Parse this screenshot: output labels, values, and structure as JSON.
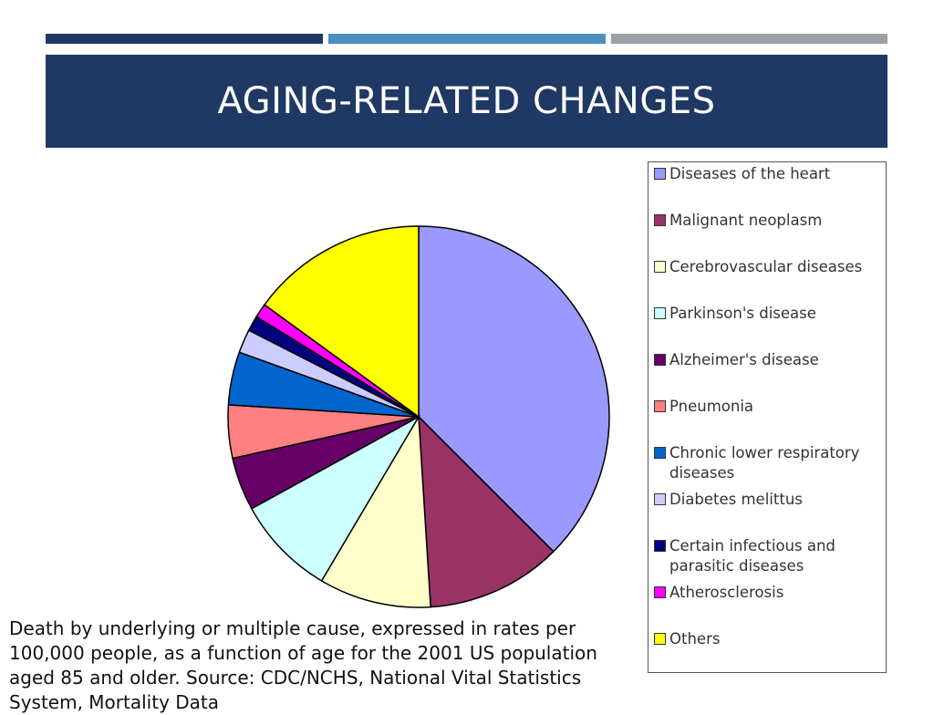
{
  "header": {
    "title": "AGING-RELATED CHANGES",
    "bar_colors": [
      "#1f3864",
      "#4a8fbf",
      "#9aa0a6"
    ],
    "band_color": "#1f3864"
  },
  "caption": "Death by underlying or multiple cause, expressed in rates per 100,000 people, as a function of age for the 2001 US population aged 85 and older. Source: CDC/NCHS, National Vital Statistics System, Mortality Data",
  "chart_data": {
    "type": "pie",
    "legend_position": "right",
    "slices": [
      {
        "label": "Diseases of the heart",
        "value": 37.5,
        "color": "#9999ff"
      },
      {
        "label": "Malignant neoplasm",
        "value": 11.5,
        "color": "#993366"
      },
      {
        "label": "Cerebrovascular diseases",
        "value": 9.5,
        "color": "#ffffcc"
      },
      {
        "label": "Parkinson's disease",
        "value": 8.5,
        "color": "#ccffff"
      },
      {
        "label": "Alzheimer's disease",
        "value": 4.5,
        "color": "#660066"
      },
      {
        "label": "Pneumonia",
        "value": 4.5,
        "color": "#ff8080"
      },
      {
        "label": "Chronic lower respiratory\ndiseases",
        "value": 4.5,
        "color": "#0066cc"
      },
      {
        "label": "Diabetes melittus",
        "value": 2.0,
        "color": "#ccccff"
      },
      {
        "label": "Certain infectious and\nparasitic diseases",
        "value": 1.3,
        "color": "#000080"
      },
      {
        "label": "Atherosclerosis",
        "value": 1.2,
        "color": "#ff00ff"
      },
      {
        "label": "Others",
        "value": 15.0,
        "color": "#ffff00"
      }
    ]
  }
}
